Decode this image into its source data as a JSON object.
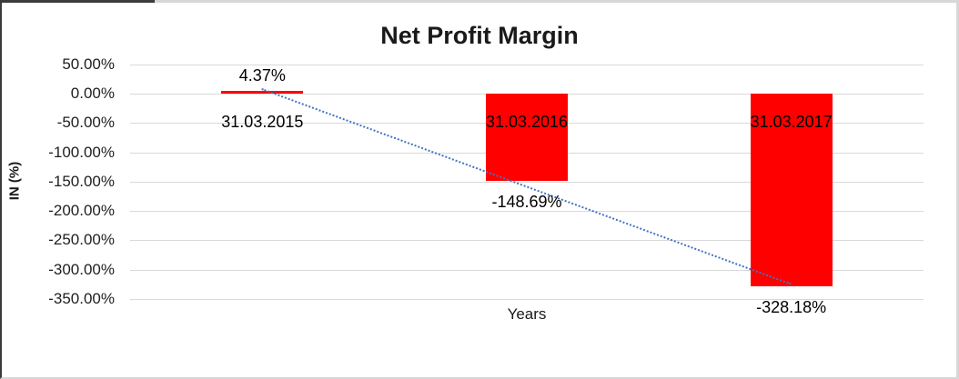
{
  "chart_data": {
    "type": "bar",
    "title": "Net Profit Margin",
    "categories": [
      "31.03.2015",
      "31.03.2016",
      "31.03.2017"
    ],
    "values": [
      4.37,
      -148.69,
      -328.18
    ],
    "data_labels": [
      "4.37%",
      "-148.69%",
      "-328.18%"
    ],
    "xlabel": "Years",
    "ylabel": "IN (%)",
    "ylim": [
      -350,
      50
    ],
    "ytick_interval": 50,
    "ytick_labels": [
      "50.00%",
      "0.00%",
      "-50.00%",
      "-100.00%",
      "-150.00%",
      "-200.00%",
      "-250.00%",
      "-300.00%",
      "-350.00%"
    ],
    "grid": true,
    "legend": "none",
    "bar_color": "#FF0000",
    "gridline_color": "#D9D9D9",
    "trendline": {
      "type": "linear",
      "style": "dotted",
      "color": "#4472C4",
      "endpoints_value": [
        8.8,
        -323.8
      ]
    }
  }
}
